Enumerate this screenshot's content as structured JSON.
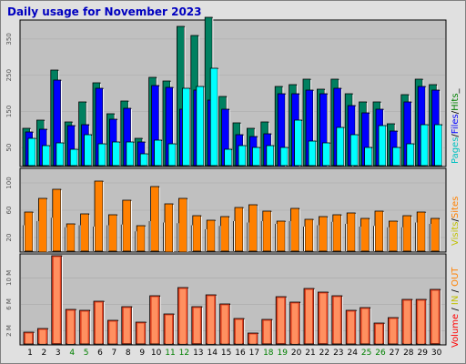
{
  "title": "Daily usage for November 2023",
  "colors": {
    "pages": "#00ffff",
    "files": "#0000ff",
    "hits": "#008000",
    "visits": "#ffff00",
    "sites": "#ff8000",
    "volume": "#ff0000",
    "in": "#ffff00",
    "out": "#ff8000"
  },
  "chart_data": [
    {
      "type": "bar",
      "name": "daily-hits-files-pages",
      "categories": [
        "1",
        "2",
        "3",
        "4",
        "5",
        "6",
        "7",
        "8",
        "9",
        "10",
        "11",
        "12",
        "13",
        "14",
        "15",
        "16",
        "17",
        "18",
        "19",
        "20",
        "21",
        "22",
        "23",
        "24",
        "25",
        "26",
        "27",
        "28",
        "29",
        "30"
      ],
      "weekend_days": [
        "4",
        "5",
        "11",
        "12",
        "18",
        "19",
        "25",
        "26"
      ],
      "y_ticks": [
        "50",
        "150",
        "250",
        "350"
      ],
      "ylim": [
        0,
        400
      ],
      "legend": {
        "pages": "Pages",
        "files": "Files",
        "hits": "Hits",
        "sep": "/"
      },
      "series": [
        {
          "name": "Hits",
          "values": [
            103,
            125,
            265,
            122,
            175,
            228,
            143,
            178,
            76,
            244,
            233,
            385,
            360,
            410,
            192,
            118,
            103,
            122,
            218,
            223,
            240,
            212,
            240,
            200,
            177,
            177,
            115,
            197,
            240,
            225
          ]
        },
        {
          "name": "Files",
          "values": [
            93,
            100,
            237,
            110,
            114,
            214,
            128,
            158,
            66,
            222,
            217,
            155,
            210,
            180,
            155,
            85,
            80,
            88,
            200,
            200,
            208,
            200,
            215,
            165,
            145,
            157,
            95,
            177,
            220,
            210
          ]
        },
        {
          "name": "Pages",
          "values": [
            75,
            55,
            62,
            45,
            85,
            60,
            65,
            65,
            32,
            70,
            60,
            215,
            220,
            270,
            45,
            55,
            50,
            55,
            50,
            125,
            68,
            63,
            105,
            85,
            50,
            110,
            50,
            60,
            113,
            113
          ]
        }
      ]
    },
    {
      "type": "bar",
      "name": "daily-visits-sites",
      "categories": [
        "1",
        "2",
        "3",
        "4",
        "5",
        "6",
        "7",
        "8",
        "9",
        "10",
        "11",
        "12",
        "13",
        "14",
        "15",
        "16",
        "17",
        "18",
        "19",
        "20",
        "21",
        "22",
        "23",
        "24",
        "25",
        "26",
        "27",
        "28",
        "29",
        "30"
      ],
      "y_ticks": [
        "20",
        "60",
        "100"
      ],
      "ylim": [
        0,
        120
      ],
      "legend": {
        "visits": "Visits",
        "sites": "Sites",
        "sep": "/"
      },
      "series": [
        {
          "name": "Visits",
          "values": [
            38,
            44,
            49,
            35,
            38,
            36,
            38,
            39,
            29,
            44,
            42,
            41,
            38,
            32,
            37,
            44,
            42,
            44,
            40,
            44,
            36,
            38,
            43,
            40,
            36,
            37,
            35,
            35,
            42,
            40
          ]
        },
        {
          "name": "Sites",
          "values": [
            57,
            78,
            91,
            40,
            55,
            103,
            53,
            75,
            37,
            95,
            70,
            78,
            52,
            45,
            51,
            64,
            68,
            59,
            44,
            63,
            47,
            51,
            53,
            56,
            48,
            59,
            44,
            52,
            57,
            48
          ]
        }
      ]
    },
    {
      "type": "bar",
      "name": "daily-volume",
      "categories": [
        "1",
        "2",
        "3",
        "4",
        "5",
        "6",
        "7",
        "8",
        "9",
        "10",
        "11",
        "12",
        "13",
        "14",
        "15",
        "16",
        "17",
        "18",
        "19",
        "20",
        "21",
        "22",
        "23",
        "24",
        "25",
        "26",
        "27",
        "28",
        "29",
        "30"
      ],
      "y_ticks": [
        "2 M",
        "6 M",
        "10 M"
      ],
      "ylim": [
        0,
        13.5
      ],
      "legend": {
        "volume": "Volume",
        "in": "IN",
        "out": "OUT",
        "sep": "/"
      },
      "series": [
        {
          "name": "Volume",
          "values": [
            1.8,
            2.4,
            13.3,
            5.3,
            5.1,
            6.5,
            3.6,
            5.6,
            3.3,
            7.3,
            4.6,
            8.6,
            5.6,
            7.5,
            6.1,
            3.9,
            1.7,
            3.7,
            7.1,
            6.4,
            8.4,
            7.8,
            7.3,
            5.1,
            5.5,
            3.2,
            4.0,
            6.8,
            6.8,
            8.2
          ]
        }
      ]
    }
  ]
}
